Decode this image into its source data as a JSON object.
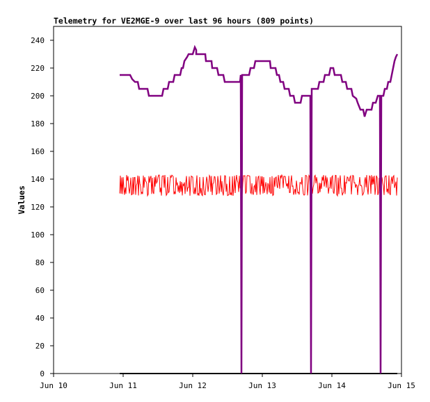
{
  "chart_data": {
    "type": "line",
    "title": "Telemetry for VE2MGE-9 over last 96 hours (809 points)",
    "xlabel": "",
    "ylabel": "Values",
    "xlim": [
      "Jun 10",
      "Jun 15"
    ],
    "ylim": [
      0,
      250
    ],
    "x_ticks": [
      "Jun 10",
      "Jun 11",
      "Jun 12",
      "Jun 13",
      "Jun 14",
      "Jun 15"
    ],
    "y_ticks": [
      0,
      20,
      40,
      60,
      80,
      100,
      120,
      140,
      160,
      180,
      200,
      220,
      240
    ],
    "x_unit": "days since Jun 10 00:00",
    "grid": false,
    "legend": "none",
    "series": [
      {
        "color": "#800080",
        "points": [
          [
            0.95,
            215
          ],
          [
            1.1,
            215
          ],
          [
            1.13,
            212
          ],
          [
            1.17,
            210
          ],
          [
            1.21,
            210
          ],
          [
            1.23,
            205
          ],
          [
            1.35,
            205
          ],
          [
            1.37,
            200
          ],
          [
            1.56,
            200
          ],
          [
            1.58,
            205
          ],
          [
            1.64,
            205
          ],
          [
            1.66,
            210
          ],
          [
            1.72,
            210
          ],
          [
            1.74,
            215
          ],
          [
            1.82,
            215
          ],
          [
            1.84,
            220
          ],
          [
            1.86,
            220
          ],
          [
            1.88,
            225
          ],
          [
            1.92,
            228
          ],
          [
            1.94,
            230
          ],
          [
            2.0,
            230
          ],
          [
            2.03,
            235
          ],
          [
            2.05,
            233
          ],
          [
            2.05,
            230
          ],
          [
            2.18,
            230
          ],
          [
            2.19,
            225
          ],
          [
            2.27,
            225
          ],
          [
            2.28,
            220
          ],
          [
            2.35,
            220
          ],
          [
            2.37,
            215
          ],
          [
            2.44,
            215
          ],
          [
            2.46,
            210
          ],
          [
            2.68,
            210
          ],
          [
            2.69,
            215
          ],
          [
            2.7,
            0
          ],
          [
            2.71,
            215
          ],
          [
            2.81,
            215
          ],
          [
            2.83,
            220
          ],
          [
            2.88,
            220
          ],
          [
            2.9,
            225
          ],
          [
            3.11,
            225
          ],
          [
            3.12,
            220
          ],
          [
            3.19,
            220
          ],
          [
            3.21,
            215
          ],
          [
            3.24,
            215
          ],
          [
            3.26,
            210
          ],
          [
            3.3,
            210
          ],
          [
            3.32,
            205
          ],
          [
            3.38,
            205
          ],
          [
            3.4,
            200
          ],
          [
            3.45,
            200
          ],
          [
            3.47,
            195
          ],
          [
            3.55,
            195
          ],
          [
            3.57,
            200
          ],
          [
            3.69,
            200
          ],
          [
            3.7,
            0
          ],
          [
            3.71,
            205
          ],
          [
            3.8,
            205
          ],
          [
            3.82,
            210
          ],
          [
            3.88,
            210
          ],
          [
            3.9,
            215
          ],
          [
            3.96,
            215
          ],
          [
            3.98,
            220
          ],
          [
            4.02,
            220
          ],
          [
            4.04,
            215
          ],
          [
            4.13,
            215
          ],
          [
            4.15,
            210
          ],
          [
            4.2,
            210
          ],
          [
            4.22,
            205
          ],
          [
            4.28,
            205
          ],
          [
            4.3,
            200
          ],
          [
            4.35,
            198
          ],
          [
            4.37,
            195
          ],
          [
            4.41,
            190
          ],
          [
            4.45,
            190
          ],
          [
            4.47,
            185
          ],
          [
            4.5,
            190
          ],
          [
            4.57,
            190
          ],
          [
            4.59,
            195
          ],
          [
            4.63,
            195
          ],
          [
            4.66,
            200
          ],
          [
            4.69,
            200
          ],
          [
            4.7,
            0
          ],
          [
            4.71,
            200
          ],
          [
            4.74,
            200
          ],
          [
            4.76,
            205
          ],
          [
            4.79,
            205
          ],
          [
            4.81,
            210
          ],
          [
            4.84,
            210
          ],
          [
            4.86,
            215
          ],
          [
            4.88,
            220
          ],
          [
            4.9,
            225
          ],
          [
            4.92,
            228
          ],
          [
            4.94,
            230
          ]
        ]
      },
      {
        "color": "#ff0000",
        "x_start": 0.95,
        "x_end": 4.94,
        "points_count": 400,
        "values_range": [
          127,
          143
        ]
      },
      {
        "color": "#000000",
        "points": [
          [
            0.95,
            0
          ],
          [
            4.94,
            0
          ]
        ]
      }
    ]
  }
}
